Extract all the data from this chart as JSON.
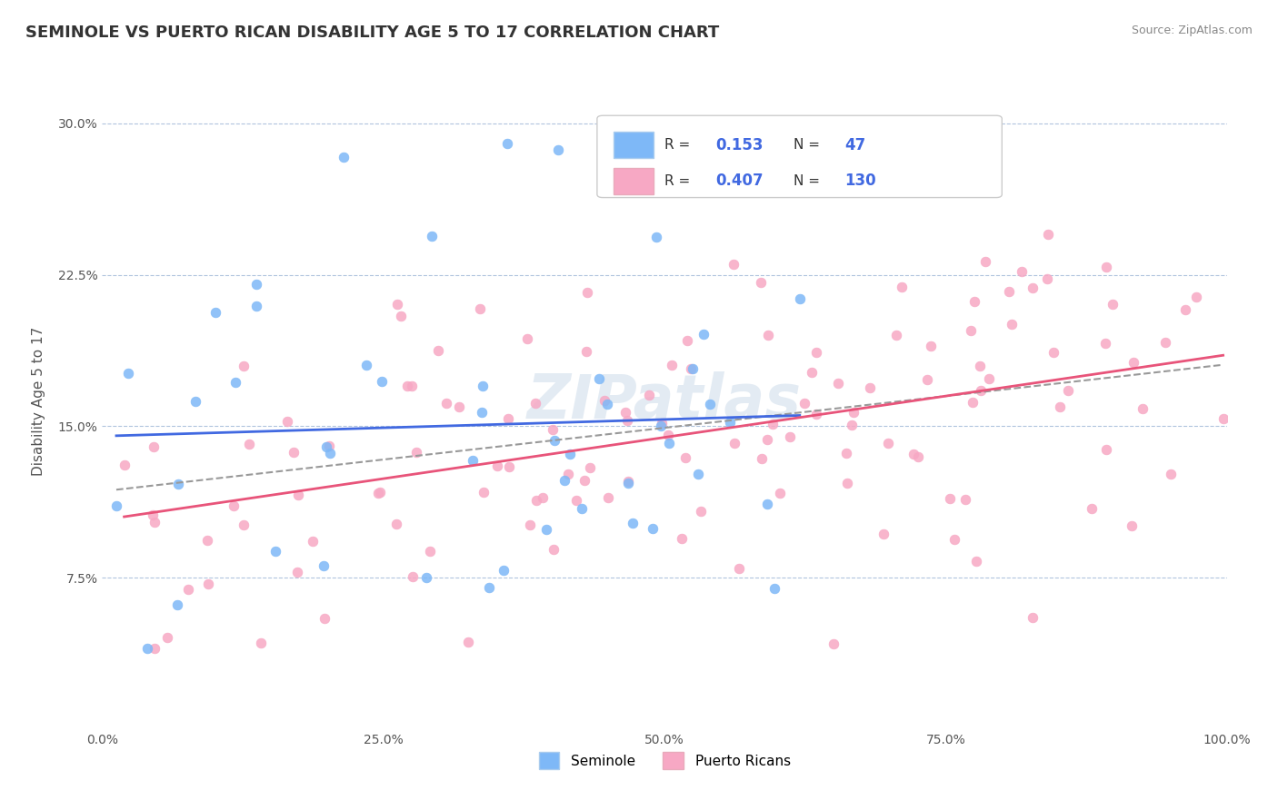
{
  "title": "SEMINOLE VS PUERTO RICAN DISABILITY AGE 5 TO 17 CORRELATION CHART",
  "source": "Source: ZipAtlas.com",
  "xlabel": "",
  "ylabel": "Disability Age 5 to 17",
  "xlim": [
    0,
    1
  ],
  "ylim": [
    0,
    0.325
  ],
  "xticks": [
    0,
    0.25,
    0.5,
    0.75,
    1.0
  ],
  "xticklabels": [
    "0.0%",
    "25.0%",
    "50.0%",
    "75.0%",
    "100.0%"
  ],
  "yticks": [
    0.075,
    0.15,
    0.225,
    0.3
  ],
  "yticklabels": [
    "7.5%",
    "15.0%",
    "22.5%",
    "30.0%"
  ],
  "seminole_color": "#7eb8f7",
  "puerto_rican_color": "#f7a8c4",
  "seminole_R": 0.153,
  "seminole_N": 47,
  "puerto_rican_R": 0.407,
  "puerto_rican_N": 130,
  "seminole_trend_color": "#4169e1",
  "puerto_rican_trend_color": "#e8547a",
  "overall_trend_color": "#999999",
  "legend_label_1": "Seminole",
  "legend_label_2": "Puerto Ricans",
  "watermark": "ZIPatlas",
  "background_color": "#ffffff",
  "grid_color": "#b0c4de",
  "title_fontsize": 13,
  "axis_label_fontsize": 11,
  "tick_fontsize": 10
}
